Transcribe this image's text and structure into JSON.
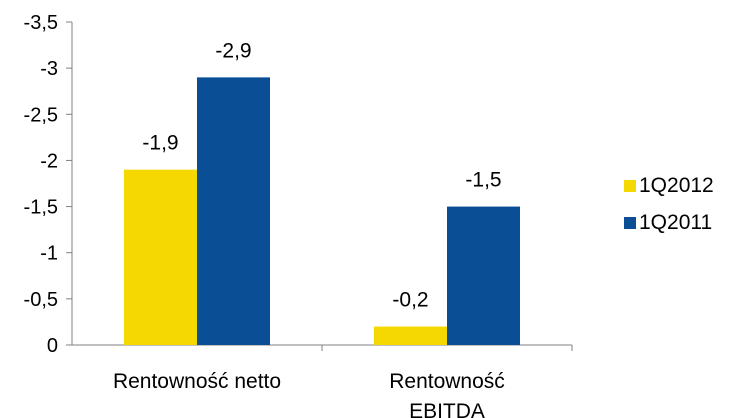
{
  "chart_data": {
    "type": "bar",
    "categories": [
      "Rentowność netto",
      "Rentowność EBITDA"
    ],
    "category_lines": [
      [
        "Rentowność netto"
      ],
      [
        "Rentowność",
        "EBITDA"
      ]
    ],
    "series": [
      {
        "name": "1Q2012",
        "color": "#F4D800",
        "values": [
          -1.9,
          -0.2
        ],
        "labels": [
          "-1,9",
          "-0,2"
        ]
      },
      {
        "name": "1Q2011",
        "color": "#0A4F96",
        "values": [
          -2.9,
          -1.5
        ],
        "labels": [
          "-2,9",
          "-1,5"
        ]
      }
    ],
    "yticks": [
      0,
      -0.5,
      -1,
      -1.5,
      -2,
      -2.5,
      -3,
      -3.5
    ],
    "ytick_labels": [
      "0",
      "-0,5",
      "-1",
      "-1,5",
      "-2",
      "-2,5",
      "-3",
      "-3,5"
    ],
    "ylim": [
      0,
      -3.5
    ],
    "y_axis_reversed": true,
    "grid": false,
    "legend_position": "right",
    "axis_color": "#808080",
    "title": "",
    "xlabel": "",
    "ylabel": ""
  }
}
